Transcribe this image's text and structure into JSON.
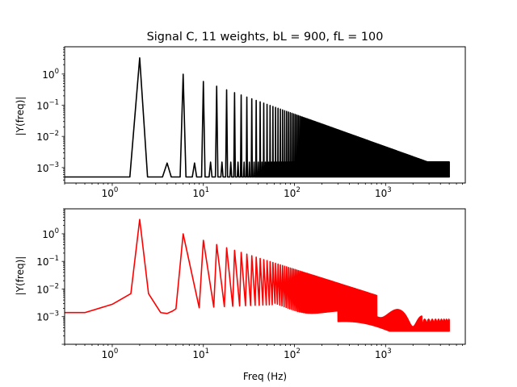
{
  "figure": {
    "title": "Signal C, 11 weights, bL = 900, fL = 100"
  },
  "chart_data": [
    {
      "type": "line",
      "scale": {
        "x": "log",
        "y": "log"
      },
      "title": "Signal C, 11 weights, bL = 900, fL = 100",
      "xlabel": "",
      "ylabel": "|Y(freq)|",
      "xlim": [
        0.3,
        7500
      ],
      "ylim": [
        0.00032,
        7.5
      ],
      "xticks": [
        {
          "base": "10",
          "exp": "0",
          "value": 1
        },
        {
          "base": "10",
          "exp": "1",
          "value": 10
        },
        {
          "base": "10",
          "exp": "2",
          "value": 100
        },
        {
          "base": "10",
          "exp": "3",
          "value": 1000
        }
      ],
      "yticks": [
        {
          "base": "10",
          "exp": "−3",
          "value": 0.001
        },
        {
          "base": "10",
          "exp": "−2",
          "value": 0.01
        },
        {
          "base": "10",
          "exp": "−1",
          "value": 0.1
        },
        {
          "base": "10",
          "exp": "0",
          "value": 1
        }
      ],
      "grid": false,
      "legend": "none",
      "series": [
        {
          "color": "#000000",
          "x_range": [
            0.3,
            5000
          ],
          "fundamental_hz": 2.0,
          "harmonics": "odd",
          "peaks": [
            {
              "x": 2,
              "y": 3.3
            },
            {
              "x": 4,
              "y": 0.0014
            },
            {
              "x": 6,
              "y": 1.05
            },
            {
              "x": 8,
              "y": 0.0014
            },
            {
              "x": 10,
              "y": 0.8
            },
            {
              "x": 14,
              "y": 0.55
            },
            {
              "x": 18,
              "y": 0.4
            },
            {
              "x": 100,
              "y": 0.045
            },
            {
              "x": 1000,
              "y": 0.0035
            },
            {
              "x": 3000,
              "y": 0.0014
            }
          ],
          "floor": 0.0005,
          "floor_band_top": 0.0015
        },
        {
          "color": "#ff0000",
          "x_range": [
            0.3,
            5000
          ],
          "fundamental_hz": 2.0,
          "harmonics": "odd",
          "peaks": [
            {
              "x": 2,
              "y": 3.3
            },
            {
              "x": 6,
              "y": 1.05
            },
            {
              "x": 10,
              "y": 0.8
            },
            {
              "x": 14,
              "y": 0.5
            },
            {
              "x": 100,
              "y": 0.045
            },
            {
              "x": 1000,
              "y": 0.0014
            },
            {
              "x": 5000,
              "y": 0.0003
            }
          ],
          "floor_start": 0.0014,
          "trough_min": 0.0003
        }
      ]
    },
    {
      "type": "line",
      "scale": {
        "x": "log",
        "y": "log"
      },
      "title": "",
      "xlabel": "Freq (Hz)",
      "ylabel": "|Y(freq)|",
      "xlim": [
        0.3,
        7500
      ],
      "ylim": [
        0.0001,
        8
      ],
      "xticks": [
        {
          "base": "10",
          "exp": "0",
          "value": 1
        },
        {
          "base": "10",
          "exp": "1",
          "value": 10
        },
        {
          "base": "10",
          "exp": "2",
          "value": 100
        },
        {
          "base": "10",
          "exp": "3",
          "value": 1000
        }
      ],
      "yticks": [
        {
          "base": "10",
          "exp": "−3",
          "value": 0.001
        },
        {
          "base": "10",
          "exp": "−2",
          "value": 0.01
        },
        {
          "base": "10",
          "exp": "−1",
          "value": 0.1
        },
        {
          "base": "10",
          "exp": "0",
          "value": 1
        }
      ],
      "grid": false,
      "legend": "none",
      "series": [
        {
          "color": "#ff0000",
          "x_range": [
            0.3,
            5000
          ],
          "fundamental_hz": 2.0,
          "harmonics": "odd",
          "peaks": [
            {
              "x": 2,
              "y": 3.3
            },
            {
              "x": 6,
              "y": 1.05
            },
            {
              "x": 10,
              "y": 0.8
            },
            {
              "x": 14,
              "y": 0.5
            },
            {
              "x": 100,
              "y": 0.045
            },
            {
              "x": 1000,
              "y": 0.0014
            },
            {
              "x": 5000,
              "y": 0.0003
            }
          ],
          "floor_start": 0.0014,
          "trough_min": 0.0003
        }
      ]
    }
  ]
}
